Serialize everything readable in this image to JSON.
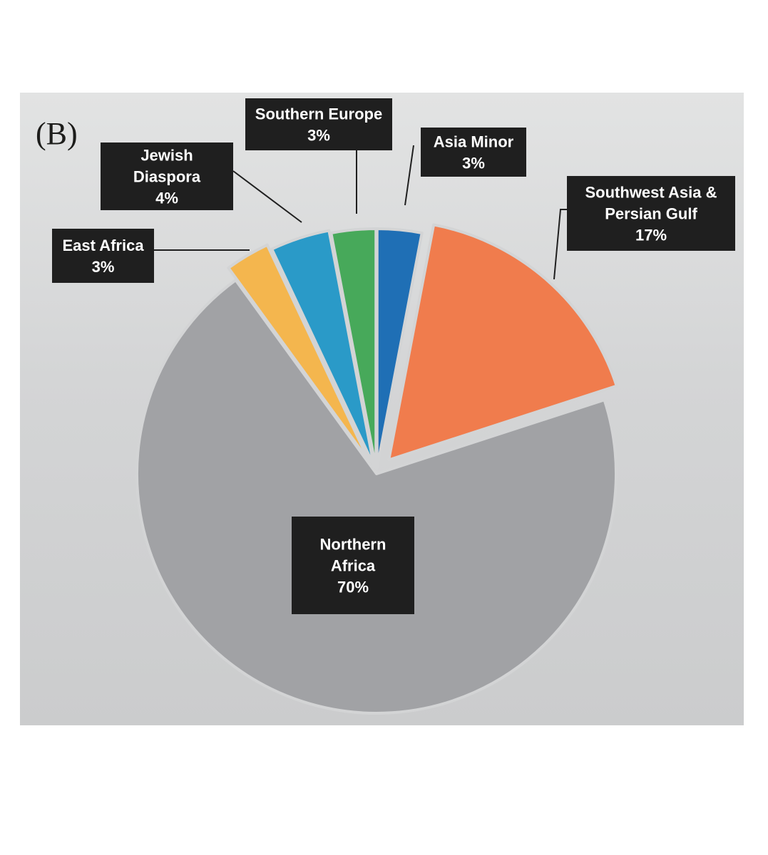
{
  "panel_label": "(B)",
  "chart_data": {
    "type": "pie",
    "title": "",
    "slices": [
      {
        "name": "Asia Minor",
        "label_lines": [
          "Asia Minor",
          "3%"
        ],
        "value": 3,
        "color": "#1f6fb5"
      },
      {
        "name": "Southwest Asia & Persian Gulf",
        "label_lines": [
          "Southwest Asia &",
          "Persian Gulf",
          "17%"
        ],
        "value": 17,
        "color": "#f07c4d"
      },
      {
        "name": "Northern Africa",
        "label_lines": [
          "Northern",
          "Africa",
          "70%"
        ],
        "value": 70,
        "color": "#a1a2a5"
      },
      {
        "name": "East Africa",
        "label_lines": [
          "East Africa",
          "3%"
        ],
        "value": 3,
        "color": "#f4b64e"
      },
      {
        "name": "Jewish Diaspora",
        "label_lines": [
          "Jewish",
          "Diaspora",
          "4%"
        ],
        "value": 4,
        "color": "#2a9ac8"
      },
      {
        "name": "Southern Europe",
        "label_lines": [
          "Southern Europe",
          "3%"
        ],
        "value": 3,
        "color": "#47a95a"
      }
    ],
    "legend": "none",
    "label_style": "dark boxes with leader lines"
  }
}
